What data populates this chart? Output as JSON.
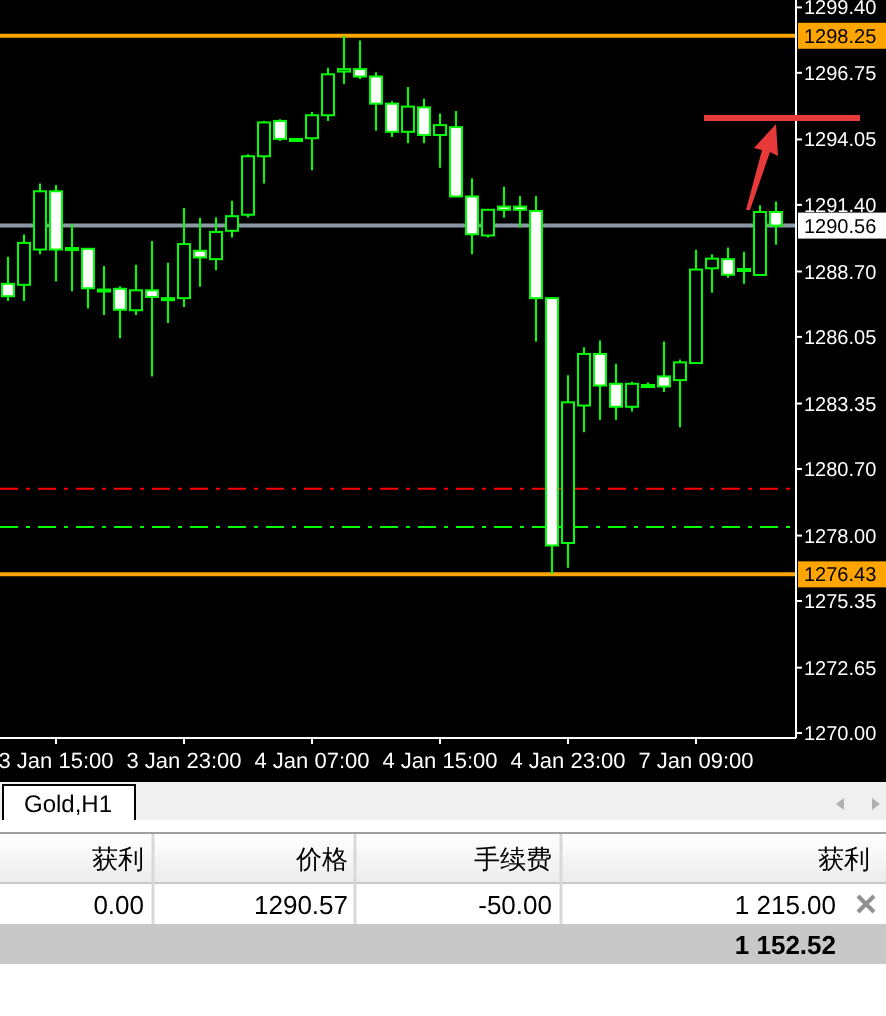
{
  "chart_data": {
    "type": "candlestick",
    "color": "#00ff00",
    "categories": [
      null,
      null,
      null,
      "3 Jan 15:00",
      null,
      null,
      null,
      null,
      null,
      null,
      null,
      "3 Jan 23:00",
      null,
      null,
      null,
      null,
      null,
      null,
      null,
      "4 Jan 07:00",
      null,
      null,
      null,
      null,
      null,
      null,
      null,
      "4 Jan 15:00",
      null,
      null,
      null,
      null,
      null,
      null,
      null,
      "4 Jan 23:00",
      null,
      null,
      null,
      null,
      null,
      null,
      null,
      "7 Jan 09:00",
      null,
      null,
      null,
      null,
      null
    ],
    "ohlc": [
      [
        1288.2,
        1289.3,
        1287.5,
        1287.7
      ],
      [
        1288.16,
        1290.2,
        1287.5,
        1289.86
      ],
      [
        1289.59,
        1292.27,
        1289.4,
        1291.95
      ],
      [
        1291.95,
        1292.2,
        1288.3,
        1289.59
      ],
      [
        1289.65,
        1290.61,
        1287.9,
        1289.65
      ],
      [
        1289.62,
        1289.65,
        1287.2,
        1288.02
      ],
      [
        1287.97,
        1288.92,
        1286.94,
        1287.97
      ],
      [
        1288.0,
        1288.1,
        1286.0,
        1287.15
      ],
      [
        1287.13,
        1288.97,
        1286.94,
        1287.94
      ],
      [
        1287.94,
        1289.94,
        1284.45,
        1287.67
      ],
      [
        1287.62,
        1289.05,
        1286.61,
        1287.62
      ],
      [
        1287.62,
        1291.27,
        1287.26,
        1289.81
      ],
      [
        1289.54,
        1290.88,
        1288.08,
        1289.27
      ],
      [
        1289.2,
        1290.9,
        1288.75,
        1290.3
      ],
      [
        1290.35,
        1291.57,
        1290.08,
        1290.94
      ],
      [
        1291.0,
        1293.45,
        1290.89,
        1293.37
      ],
      [
        1293.37,
        1294.8,
        1292.27,
        1294.74
      ],
      [
        1294.8,
        1294.87,
        1293.99,
        1294.07
      ],
      [
        1294.07,
        1294.1,
        1294.05,
        1294.07
      ],
      [
        1294.1,
        1295.16,
        1292.8,
        1295.03
      ],
      [
        1295.03,
        1296.96,
        1294.8,
        1296.69
      ],
      [
        1296.8,
        1298.25,
        1296.3,
        1296.9
      ],
      [
        1296.9,
        1298.06,
        1296.5,
        1296.6
      ],
      [
        1296.6,
        1296.77,
        1294.4,
        1295.5
      ],
      [
        1295.5,
        1295.6,
        1294.15,
        1294.36
      ],
      [
        1294.36,
        1296.18,
        1293.9,
        1295.38
      ],
      [
        1295.35,
        1295.7,
        1293.9,
        1294.23
      ],
      [
        1294.23,
        1295.1,
        1292.9,
        1294.63
      ],
      [
        1294.55,
        1295.2,
        1291.74,
        1291.74
      ],
      [
        1291.74,
        1292.48,
        1289.4,
        1290.21
      ],
      [
        1290.16,
        1291.2,
        1290.08,
        1291.2
      ],
      [
        1291.33,
        1292.13,
        1290.88,
        1291.2
      ],
      [
        1291.33,
        1291.76,
        1290.48,
        1291.2
      ],
      [
        1291.15,
        1291.76,
        1285.85,
        1287.62
      ],
      [
        1287.62,
        1287.62,
        1276.43,
        1277.6
      ],
      [
        1277.7,
        1284.5,
        1276.7,
        1283.4
      ],
      [
        1283.27,
        1285.63,
        1282.19,
        1285.36
      ],
      [
        1285.36,
        1285.9,
        1282.68,
        1284.08
      ],
      [
        1284.15,
        1284.96,
        1282.68,
        1283.22
      ],
      [
        1283.22,
        1284.23,
        1283.03,
        1284.15
      ],
      [
        1284.1,
        1284.2,
        1284.0,
        1284.1
      ],
      [
        1284.45,
        1285.86,
        1283.82,
        1284.04
      ],
      [
        1284.3,
        1285.13,
        1282.39,
        1285.02
      ],
      [
        1284.99,
        1289.58,
        1284.99,
        1288.78
      ],
      [
        1288.83,
        1289.4,
        1287.84,
        1289.22
      ],
      [
        1289.2,
        1289.67,
        1288.45,
        1288.57
      ],
      [
        1288.8,
        1289.5,
        1288.2,
        1288.8
      ],
      [
        1288.56,
        1291.38,
        1288.56,
        1291.11
      ],
      [
        1291.11,
        1291.54,
        1289.78,
        1290.56
      ]
    ],
    "ylim": [
      1269.8,
      1299.7
    ],
    "yticks": [
      {
        "value": 1299.4,
        "label": "1299.40"
      },
      {
        "value": 1296.75,
        "label": "1296.75"
      },
      {
        "value": 1294.05,
        "label": "1294.05"
      },
      {
        "value": 1291.4,
        "label": "1291.40"
      },
      {
        "value": 1288.7,
        "label": "1288.70"
      },
      {
        "value": 1286.05,
        "label": "1286.05"
      },
      {
        "value": 1283.35,
        "label": "1283.35"
      },
      {
        "value": 1280.7,
        "label": "1280.70"
      },
      {
        "value": 1278.0,
        "label": "1278.00"
      },
      {
        "value": 1275.35,
        "label": "1275.35"
      },
      {
        "value": 1272.65,
        "label": "1272.65"
      },
      {
        "value": 1270.0,
        "label": "1270.00"
      }
    ],
    "ref_lines": [
      {
        "axis": "y",
        "value": 1298.25,
        "label": "1298.25",
        "color": "#ffa500",
        "line_style": "solid"
      },
      {
        "axis": "y",
        "value": 1276.43,
        "label": "1276.43",
        "color": "#ffa500",
        "line_style": "solid"
      },
      {
        "axis": "y",
        "value": 1290.56,
        "label": "1290.56",
        "color": "#8c9aa8",
        "line_style": "solid"
      },
      {
        "axis": "y",
        "value": 1279.9,
        "color": "#ff0000",
        "line_style": "dashed"
      },
      {
        "axis": "y",
        "value": 1278.35,
        "color": "#00ff00",
        "line_style": "dashed"
      }
    ],
    "annotations": [
      "Gold,H1",
      "获利",
      "价格",
      "手续费",
      "获利",
      "0.00",
      "1290.57",
      "-50.00",
      "1 215.00",
      "1 152.52"
    ]
  }
}
